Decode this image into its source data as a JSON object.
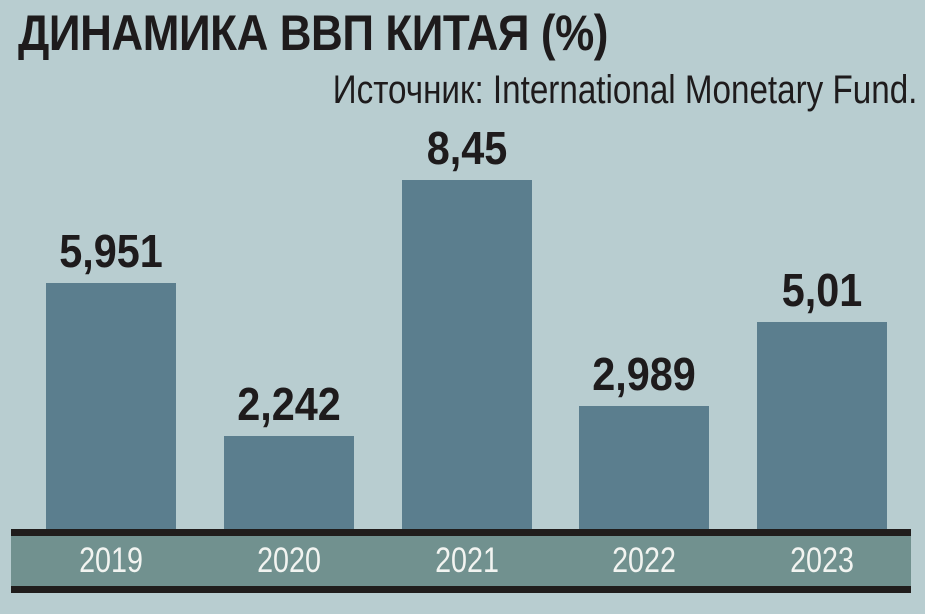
{
  "chart_data": {
    "type": "bar",
    "title": "ДИНАМИКА ВВП КИТАЯ (%)",
    "source": "Источник: International Monetary Fund.",
    "categories": [
      "2019",
      "2020",
      "2021",
      "2022",
      "2023"
    ],
    "values": [
      5.951,
      2.242,
      8.45,
      2.989,
      5.01
    ],
    "value_labels": [
      "5,951",
      "2,242",
      "8,45",
      "2,989",
      "5,01"
    ],
    "xlabel": "",
    "ylabel": "",
    "ylim": [
      0,
      8.45
    ],
    "grid": false,
    "legend": "none",
    "colors": {
      "background": "#b8cdd0",
      "bar": "#5b7e8e",
      "axis_band": "#71918f",
      "axis_line": "#201d1c",
      "text": "#1e1b1c",
      "year_text": "#f2f4f1"
    }
  }
}
